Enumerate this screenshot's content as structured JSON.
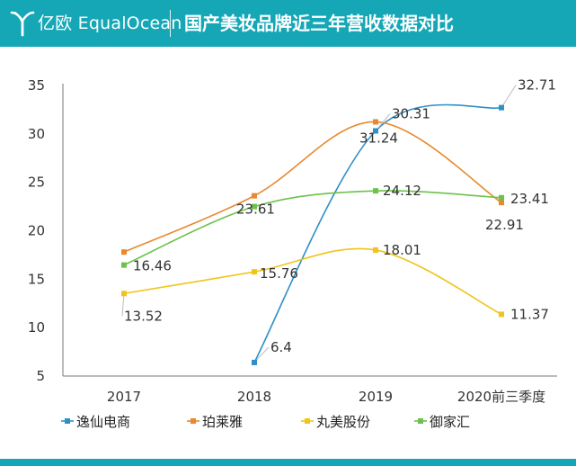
{
  "header": {
    "brand": "亿欧 EqualOcean",
    "title": "国产美妆品牌近三年营收数据对比",
    "background_color": "#16a7b7",
    "logo_icon": "y-logo-icon"
  },
  "chart_data": {
    "type": "line",
    "smooth": true,
    "categories": [
      "2017",
      "2018",
      "2019",
      "2020前三季度"
    ],
    "ylim": [
      5,
      35
    ],
    "yticks": [
      5,
      10,
      15,
      20,
      25,
      30,
      35
    ],
    "grid": false,
    "legend_position": "bottom",
    "series": [
      {
        "name": "逸仙电商",
        "color": "#2f8fc8",
        "values": [
          null,
          6.4,
          30.31,
          32.71
        ]
      },
      {
        "name": "珀莱雅",
        "color": "#e8892f",
        "values": [
          17.8,
          23.61,
          31.24,
          22.91
        ]
      },
      {
        "name": "丸美股份",
        "color": "#f0c419",
        "values": [
          13.52,
          15.76,
          18.01,
          11.37
        ]
      },
      {
        "name": "御家汇",
        "color": "#6cc24a",
        "values": [
          16.46,
          22.5,
          24.12,
          23.41
        ]
      }
    ],
    "data_labels": [
      {
        "series": 0,
        "index": 1,
        "text": "6.4"
      },
      {
        "series": 0,
        "index": 2,
        "text": "30.31"
      },
      {
        "series": 0,
        "index": 3,
        "text": "32.71"
      },
      {
        "series": 1,
        "index": 1,
        "text": "23.61"
      },
      {
        "series": 1,
        "index": 2,
        "text": "31.24"
      },
      {
        "series": 1,
        "index": 3,
        "text": "22.91"
      },
      {
        "series": 2,
        "index": 0,
        "text": "13.52"
      },
      {
        "series": 2,
        "index": 1,
        "text": "15.76"
      },
      {
        "series": 2,
        "index": 2,
        "text": "18.01"
      },
      {
        "series": 2,
        "index": 3,
        "text": "11.37"
      },
      {
        "series": 3,
        "index": 0,
        "text": "16.46"
      },
      {
        "series": 3,
        "index": 2,
        "text": "24.12"
      },
      {
        "series": 3,
        "index": 3,
        "text": "23.41"
      }
    ]
  }
}
